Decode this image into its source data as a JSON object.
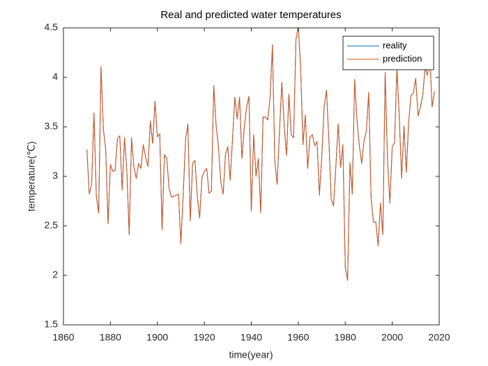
{
  "chart_data": {
    "type": "line",
    "title": "Real and predicted water temperatures",
    "x_label": "time(year)",
    "y_label": "temperature(℃)",
    "xlim": [
      1860,
      2020
    ],
    "xticks": [
      1860,
      1880,
      1900,
      1920,
      1940,
      1960,
      1980,
      2000,
      2020
    ],
    "ylim": [
      1.5,
      4.5
    ],
    "yticks": [
      1.5,
      2,
      2.5,
      3,
      3.5,
      4,
      4.5
    ],
    "legend": "northeast",
    "x": [
      1870,
      1871,
      1872,
      1873,
      1874,
      1875,
      1876,
      1877,
      1878,
      1879,
      1880,
      1881,
      1882,
      1883,
      1884,
      1885,
      1886,
      1887,
      1888,
      1889,
      1890,
      1891,
      1892,
      1893,
      1894,
      1895,
      1896,
      1897,
      1898,
      1899,
      1900,
      1901,
      1902,
      1903,
      1904,
      1905,
      1906,
      1907,
      1908,
      1909,
      1910,
      1911,
      1912,
      1913,
      1914,
      1915,
      1916,
      1917,
      1918,
      1919,
      1920,
      1921,
      1922,
      1923,
      1924,
      1925,
      1926,
      1927,
      1928,
      1929,
      1930,
      1931,
      1932,
      1933,
      1934,
      1935,
      1936,
      1937,
      1938,
      1939,
      1940,
      1941,
      1942,
      1943,
      1944,
      1945,
      1946,
      1947,
      1948,
      1949,
      1950,
      1951,
      1952,
      1953,
      1954,
      1955,
      1956,
      1957,
      1958,
      1959,
      1960,
      1961,
      1962,
      1963,
      1964,
      1965,
      1966,
      1967,
      1968,
      1969,
      1970,
      1971,
      1972,
      1973,
      1974,
      1975,
      1976,
      1977,
      1978,
      1979,
      1980,
      1981,
      1982,
      1983,
      1984,
      1985,
      1986,
      1987,
      1988,
      1989,
      1990,
      1991,
      1992,
      1993,
      1994,
      1995,
      1996,
      1997,
      1998,
      1999,
      2000,
      2001,
      2002,
      2003,
      2004,
      2005,
      2006,
      2007,
      2008,
      2009,
      2010,
      2011,
      2012,
      2013,
      2014,
      2015,
      2016,
      2017,
      2018
    ],
    "series": [
      {
        "name": "reality",
        "color": "#0072bd",
        "values": [
          3.27,
          2.82,
          2.92,
          3.64,
          2.8,
          2.63,
          4.11,
          3.48,
          3.27,
          2.52,
          3.12,
          3.05,
          3.06,
          3.38,
          3.41,
          2.86,
          3.39,
          3.05,
          2.41,
          3.39,
          3.1,
          2.98,
          3.13,
          3.08,
          3.32,
          3.19,
          3.1,
          3.56,
          3.33,
          3.76,
          3.4,
          3.43,
          2.46,
          3.22,
          3.18,
          2.88,
          2.79,
          2.8,
          2.81,
          2.82,
          2.32,
          2.82,
          3.37,
          3.53,
          2.55,
          3.13,
          3.16,
          2.8,
          2.58,
          2.99,
          3.05,
          3.08,
          2.83,
          2.85,
          3.92,
          3.52,
          3.3,
          2.95,
          2.82,
          3.22,
          3.3,
          2.96,
          3.38,
          3.8,
          3.58,
          3.8,
          3.18,
          3.49,
          3.7,
          3.81,
          2.65,
          3.42,
          3.0,
          3.18,
          2.63,
          3.6,
          3.6,
          3.57,
          3.8,
          4.33,
          3.16,
          2.92,
          3.46,
          3.95,
          3.52,
          3.21,
          3.83,
          3.42,
          3.39,
          4.38,
          4.52,
          4.1,
          3.32,
          3.62,
          3.08,
          3.4,
          3.42,
          3.31,
          3.35,
          2.81,
          3.2,
          3.7,
          3.87,
          3.38,
          2.77,
          2.7,
          3.1,
          3.53,
          3.09,
          3.32,
          2.08,
          1.95,
          3.14,
          2.82,
          3.98,
          3.57,
          3.31,
          3.13,
          3.36,
          3.46,
          3.85,
          2.78,
          2.54,
          2.54,
          2.3,
          2.73,
          2.41,
          4.05,
          3.16,
          2.73,
          3.3,
          3.34,
          4.1,
          3.6,
          2.98,
          3.51,
          3.04,
          3.55,
          3.82,
          3.84,
          3.99,
          3.61,
          3.7,
          3.82,
          4.1,
          4.02,
          4.21,
          3.7,
          3.86
        ]
      },
      {
        "name": "prediction",
        "color": "#d95319",
        "values": [
          3.27,
          2.82,
          2.92,
          3.64,
          2.8,
          2.63,
          4.11,
          3.48,
          3.27,
          2.52,
          3.12,
          3.05,
          3.06,
          3.38,
          3.41,
          2.86,
          3.39,
          3.05,
          2.41,
          3.39,
          3.1,
          2.98,
          3.13,
          3.08,
          3.32,
          3.19,
          3.1,
          3.56,
          3.33,
          3.76,
          3.4,
          3.43,
          2.46,
          3.22,
          3.18,
          2.88,
          2.79,
          2.8,
          2.81,
          2.82,
          2.32,
          2.82,
          3.37,
          3.53,
          2.55,
          3.13,
          3.16,
          2.8,
          2.58,
          2.99,
          3.05,
          3.08,
          2.83,
          2.85,
          3.92,
          3.52,
          3.3,
          2.95,
          2.82,
          3.22,
          3.3,
          2.96,
          3.38,
          3.8,
          3.58,
          3.8,
          3.18,
          3.49,
          3.7,
          3.81,
          2.65,
          3.42,
          3.0,
          3.18,
          2.63,
          3.6,
          3.6,
          3.57,
          3.8,
          4.33,
          3.16,
          2.92,
          3.46,
          3.95,
          3.52,
          3.21,
          3.83,
          3.42,
          3.39,
          4.38,
          4.52,
          4.1,
          3.32,
          3.62,
          3.08,
          3.4,
          3.42,
          3.31,
          3.35,
          2.81,
          3.2,
          3.7,
          3.87,
          3.38,
          2.77,
          2.7,
          3.1,
          3.53,
          3.09,
          3.32,
          2.08,
          1.95,
          3.14,
          2.82,
          3.98,
          3.57,
          3.31,
          3.13,
          3.36,
          3.46,
          3.85,
          2.78,
          2.54,
          2.54,
          2.3,
          2.73,
          2.41,
          4.05,
          3.16,
          2.73,
          3.3,
          3.34,
          4.1,
          3.6,
          2.98,
          3.51,
          3.04,
          3.55,
          3.82,
          3.84,
          3.99,
          3.61,
          3.7,
          3.82,
          4.1,
          4.02,
          4.21,
          3.7,
          3.86
        ]
      }
    ]
  }
}
